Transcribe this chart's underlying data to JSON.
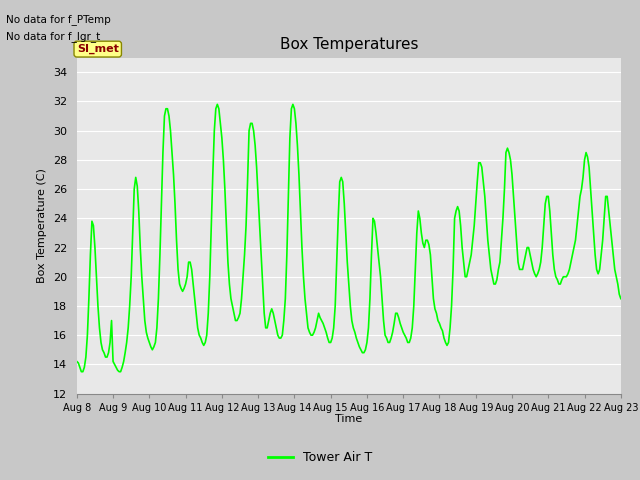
{
  "title": "Box Temperatures",
  "ylabel": "Box Temperature (C)",
  "xlabel": "Time",
  "ylim": [
    12,
    35
  ],
  "yticks": [
    12,
    14,
    16,
    18,
    20,
    22,
    24,
    26,
    28,
    30,
    32,
    34
  ],
  "xtick_labels": [
    "Aug 8",
    "Aug 9",
    "Aug 10",
    "Aug 11",
    "Aug 12",
    "Aug 13",
    "Aug 14",
    "Aug 15",
    "Aug 16",
    "Aug 17",
    "Aug 18",
    "Aug 19",
    "Aug 20",
    "Aug 21",
    "Aug 22",
    "Aug 23"
  ],
  "text_no_data_1": "No data for f_PTemp",
  "text_no_data_2": "No data for f_lgr_t",
  "si_met_label": "SI_met",
  "legend_label": "Tower Air T",
  "line_color": "#00FF00",
  "fig_bg_color": "#C8C8C8",
  "plot_bg_color": "#E8E8E8",
  "grid_color": "#FFFFFF",
  "x_days": [
    0.0,
    0.042,
    0.083,
    0.125,
    0.167,
    0.208,
    0.25,
    0.292,
    0.333,
    0.375,
    0.417,
    0.458,
    0.5,
    0.542,
    0.583,
    0.625,
    0.667,
    0.708,
    0.75,
    0.792,
    0.833,
    0.875,
    0.917,
    0.958,
    1.0,
    1.042,
    1.083,
    1.125,
    1.167,
    1.208,
    1.25,
    1.292,
    1.333,
    1.375,
    1.417,
    1.458,
    1.5,
    1.542,
    1.583,
    1.625,
    1.667,
    1.708,
    1.75,
    1.792,
    1.833,
    1.875,
    1.917,
    1.958,
    2.0,
    2.042,
    2.083,
    2.125,
    2.167,
    2.208,
    2.25,
    2.292,
    2.333,
    2.375,
    2.417,
    2.458,
    2.5,
    2.542,
    2.583,
    2.625,
    2.667,
    2.708,
    2.75,
    2.792,
    2.833,
    2.875,
    2.917,
    2.958,
    3.0,
    3.042,
    3.083,
    3.125,
    3.167,
    3.208,
    3.25,
    3.292,
    3.333,
    3.375,
    3.417,
    3.458,
    3.5,
    3.542,
    3.583,
    3.625,
    3.667,
    3.708,
    3.75,
    3.792,
    3.833,
    3.875,
    3.917,
    3.958,
    4.0,
    4.042,
    4.083,
    4.125,
    4.167,
    4.208,
    4.25,
    4.292,
    4.333,
    4.375,
    4.417,
    4.458,
    4.5,
    4.542,
    4.583,
    4.625,
    4.667,
    4.708,
    4.75,
    4.792,
    4.833,
    4.875,
    4.917,
    4.958,
    5.0,
    5.042,
    5.083,
    5.125,
    5.167,
    5.208,
    5.25,
    5.292,
    5.333,
    5.375,
    5.417,
    5.458,
    5.5,
    5.542,
    5.583,
    5.625,
    5.667,
    5.708,
    5.75,
    5.792,
    5.833,
    5.875,
    5.917,
    5.958,
    6.0,
    6.042,
    6.083,
    6.125,
    6.167,
    6.208,
    6.25,
    6.292,
    6.333,
    6.375,
    6.417,
    6.458,
    6.5,
    6.542,
    6.583,
    6.625,
    6.667,
    6.708,
    6.75,
    6.792,
    6.833,
    6.875,
    6.917,
    6.958,
    7.0,
    7.042,
    7.083,
    7.125,
    7.167,
    7.208,
    7.25,
    7.292,
    7.333,
    7.375,
    7.417,
    7.458,
    7.5,
    7.542,
    7.583,
    7.625,
    7.667,
    7.708,
    7.75,
    7.792,
    7.833,
    7.875,
    7.917,
    7.958,
    8.0,
    8.042,
    8.083,
    8.125,
    8.167,
    8.208,
    8.25,
    8.292,
    8.333,
    8.375,
    8.417,
    8.458,
    8.5,
    8.542,
    8.583,
    8.625,
    8.667,
    8.708,
    8.75,
    8.792,
    8.833,
    8.875,
    8.917,
    8.958,
    9.0,
    9.042,
    9.083,
    9.125,
    9.167,
    9.208,
    9.25,
    9.292,
    9.333,
    9.375,
    9.417,
    9.458,
    9.5,
    9.542,
    9.583,
    9.625,
    9.667,
    9.708,
    9.75,
    9.792,
    9.833,
    9.875,
    9.917,
    9.958,
    10.0,
    10.042,
    10.083,
    10.125,
    10.167,
    10.208,
    10.25,
    10.292,
    10.333,
    10.375,
    10.417,
    10.458,
    10.5,
    10.542,
    10.583,
    10.625,
    10.667,
    10.708,
    10.75,
    10.792,
    10.833,
    10.875,
    10.917,
    10.958,
    11.0,
    11.042,
    11.083,
    11.125,
    11.167,
    11.208,
    11.25,
    11.292,
    11.333,
    11.375,
    11.417,
    11.458,
    11.5,
    11.542,
    11.583,
    11.625,
    11.667,
    11.708,
    11.75,
    11.792,
    11.833,
    11.875,
    11.917,
    11.958,
    12.0,
    12.042,
    12.083,
    12.125,
    12.167,
    12.208,
    12.25,
    12.292,
    12.333,
    12.375,
    12.417,
    12.458,
    12.5,
    12.542,
    12.583,
    12.625,
    12.667,
    12.708,
    12.75,
    12.792,
    12.833,
    12.875,
    12.917,
    12.958,
    13.0,
    13.042,
    13.083,
    13.125,
    13.167,
    13.208,
    13.25,
    13.292,
    13.333,
    13.375,
    13.417,
    13.458,
    13.5,
    13.542,
    13.583,
    13.625,
    13.667,
    13.708,
    13.75,
    13.792,
    13.833,
    13.875,
    13.917,
    13.958,
    14.0,
    14.042,
    14.083,
    14.125,
    14.167,
    14.208,
    14.25,
    14.292,
    14.333,
    14.375,
    14.417,
    14.458,
    14.5,
    14.542,
    14.583,
    14.625,
    14.667,
    14.708,
    14.75,
    14.792,
    14.833,
    14.875,
    14.917,
    14.958,
    15.0
  ],
  "y_temps": [
    14.2,
    14.1,
    13.8,
    13.5,
    13.5,
    13.8,
    14.5,
    16.0,
    18.5,
    21.5,
    23.8,
    23.5,
    22.0,
    20.0,
    18.0,
    16.5,
    15.5,
    15.0,
    14.8,
    14.5,
    14.5,
    14.8,
    15.5,
    17.0,
    14.2,
    14.0,
    13.8,
    13.6,
    13.5,
    13.5,
    13.8,
    14.2,
    14.8,
    15.5,
    16.5,
    18.0,
    20.0,
    23.0,
    26.0,
    26.8,
    26.2,
    24.5,
    22.0,
    20.0,
    18.5,
    17.0,
    16.2,
    15.8,
    15.5,
    15.2,
    15.0,
    15.2,
    15.5,
    16.5,
    18.5,
    21.5,
    25.0,
    28.5,
    31.0,
    31.5,
    31.5,
    31.0,
    30.0,
    28.5,
    27.0,
    25.0,
    22.5,
    20.5,
    19.5,
    19.2,
    19.0,
    19.2,
    19.5,
    20.0,
    21.0,
    21.0,
    20.5,
    19.5,
    18.5,
    17.5,
    16.5,
    16.0,
    15.8,
    15.5,
    15.3,
    15.5,
    16.0,
    17.5,
    20.0,
    23.5,
    27.0,
    30.0,
    31.5,
    31.8,
    31.5,
    30.5,
    29.5,
    28.0,
    26.0,
    23.5,
    21.0,
    19.5,
    18.5,
    18.0,
    17.5,
    17.0,
    17.0,
    17.2,
    17.5,
    18.5,
    20.0,
    21.5,
    23.5,
    26.5,
    30.0,
    30.5,
    30.5,
    30.0,
    29.0,
    27.5,
    25.5,
    23.5,
    21.5,
    19.5,
    17.5,
    16.5,
    16.5,
    17.0,
    17.5,
    17.8,
    17.5,
    17.0,
    16.5,
    16.0,
    15.8,
    15.8,
    16.0,
    17.0,
    18.5,
    21.5,
    25.5,
    29.5,
    31.5,
    31.8,
    31.5,
    30.5,
    29.0,
    27.0,
    24.5,
    22.0,
    20.0,
    18.5,
    17.5,
    16.5,
    16.2,
    16.0,
    16.0,
    16.2,
    16.5,
    17.0,
    17.5,
    17.2,
    17.0,
    16.8,
    16.5,
    16.2,
    15.8,
    15.5,
    15.5,
    15.8,
    16.5,
    18.0,
    21.0,
    24.0,
    26.5,
    26.8,
    26.5,
    25.0,
    23.0,
    21.0,
    19.5,
    18.0,
    17.0,
    16.5,
    16.2,
    15.8,
    15.5,
    15.2,
    15.0,
    14.8,
    14.8,
    15.0,
    15.5,
    16.5,
    18.5,
    21.5,
    24.0,
    23.8,
    23.0,
    22.0,
    21.0,
    20.0,
    18.5,
    17.0,
    16.0,
    15.8,
    15.5,
    15.5,
    15.8,
    16.2,
    16.8,
    17.5,
    17.5,
    17.2,
    16.8,
    16.5,
    16.2,
    16.0,
    15.8,
    15.5,
    15.5,
    15.8,
    16.5,
    18.0,
    20.5,
    23.0,
    24.5,
    24.0,
    23.0,
    22.3,
    22.0,
    22.5,
    22.5,
    22.2,
    21.5,
    20.0,
    18.5,
    17.8,
    17.5,
    17.0,
    16.8,
    16.5,
    16.3,
    15.8,
    15.5,
    15.3,
    15.5,
    16.5,
    18.0,
    20.5,
    24.0,
    24.5,
    24.8,
    24.5,
    23.5,
    22.0,
    21.0,
    20.0,
    20.0,
    20.5,
    21.0,
    21.5,
    22.5,
    23.5,
    25.0,
    26.5,
    27.8,
    27.8,
    27.5,
    26.5,
    25.5,
    24.0,
    22.5,
    21.5,
    20.5,
    20.0,
    19.5,
    19.5,
    19.8,
    20.5,
    21.0,
    22.5,
    24.0,
    26.0,
    28.5,
    28.8,
    28.5,
    28.0,
    27.0,
    25.5,
    24.0,
    22.5,
    21.0,
    20.5,
    20.5,
    20.5,
    21.0,
    21.5,
    22.0,
    22.0,
    21.5,
    21.0,
    20.5,
    20.2,
    20.0,
    20.2,
    20.5,
    21.0,
    22.0,
    23.5,
    25.0,
    25.5,
    25.5,
    24.5,
    23.0,
    21.5,
    20.5,
    20.0,
    19.8,
    19.5,
    19.5,
    19.8,
    20.0,
    20.0,
    20.0,
    20.2,
    20.5,
    21.0,
    21.5,
    22.0,
    22.5,
    23.5,
    24.5,
    25.5,
    26.0,
    26.8,
    28.0,
    28.5,
    28.2,
    27.5,
    26.0,
    24.5,
    23.0,
    21.5,
    20.5,
    20.2,
    20.5,
    21.5,
    22.5,
    24.0,
    25.5,
    25.5,
    24.5,
    23.5,
    22.5,
    21.5,
    20.5,
    20.0,
    19.5,
    18.8,
    18.5
  ]
}
